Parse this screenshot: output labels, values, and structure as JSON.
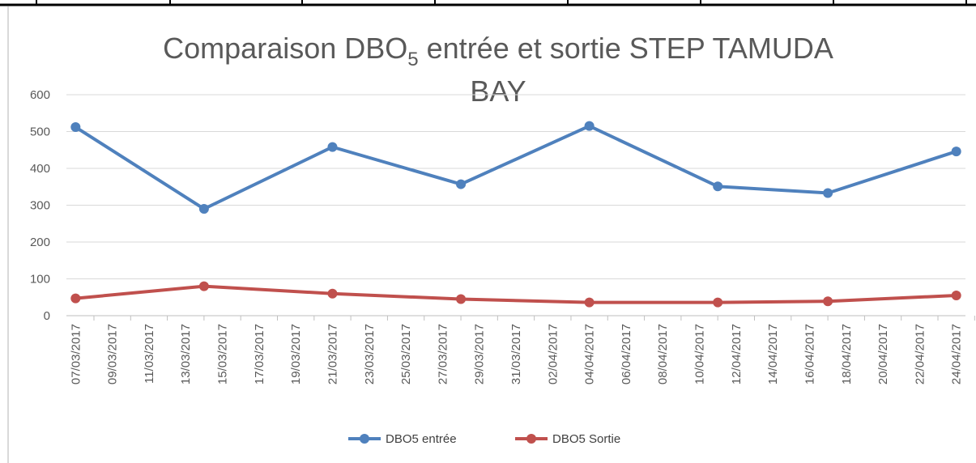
{
  "chart_data": {
    "type": "line",
    "title": [
      "Comparaison DBO",
      "5",
      " entrée et sortie STEP TAMUDA",
      "BAY"
    ],
    "x": [
      "07/03/2017",
      "14/03/2017",
      "21/03/2017",
      "28/03/2017",
      "04/04/2017",
      "11/04/2017",
      "17/04/2017",
      "24/04/2017"
    ],
    "series": [
      {
        "name": "DBO5 entrée",
        "color": "#4f81bd",
        "values": [
          512,
          290,
          458,
          357,
          515,
          351,
          333,
          446
        ]
      },
      {
        "name": "DBO5 Sortie",
        "color": "#c0504d",
        "values": [
          47,
          80,
          60,
          45,
          36,
          36,
          39,
          55
        ]
      }
    ],
    "xlim": [
      "07/03/2017",
      "24/04/2017"
    ],
    "xticks": [
      "07/03/2017",
      "09/03/2017",
      "11/03/2017",
      "13/03/2017",
      "15/03/2017",
      "17/03/2017",
      "19/03/2017",
      "21/03/2017",
      "23/03/2017",
      "25/03/2017",
      "27/03/2017",
      "29/03/2017",
      "31/03/2017",
      "02/04/2017",
      "04/04/2017",
      "06/04/2017",
      "08/04/2017",
      "10/04/2017",
      "12/04/2017",
      "14/04/2017",
      "16/04/2017",
      "18/04/2017",
      "20/04/2017",
      "22/04/2017",
      "24/04/2017"
    ],
    "ylim": [
      0,
      600
    ],
    "yticks": [
      0,
      100,
      200,
      300,
      400,
      500,
      600
    ],
    "grid": true,
    "legend": "bottom"
  }
}
